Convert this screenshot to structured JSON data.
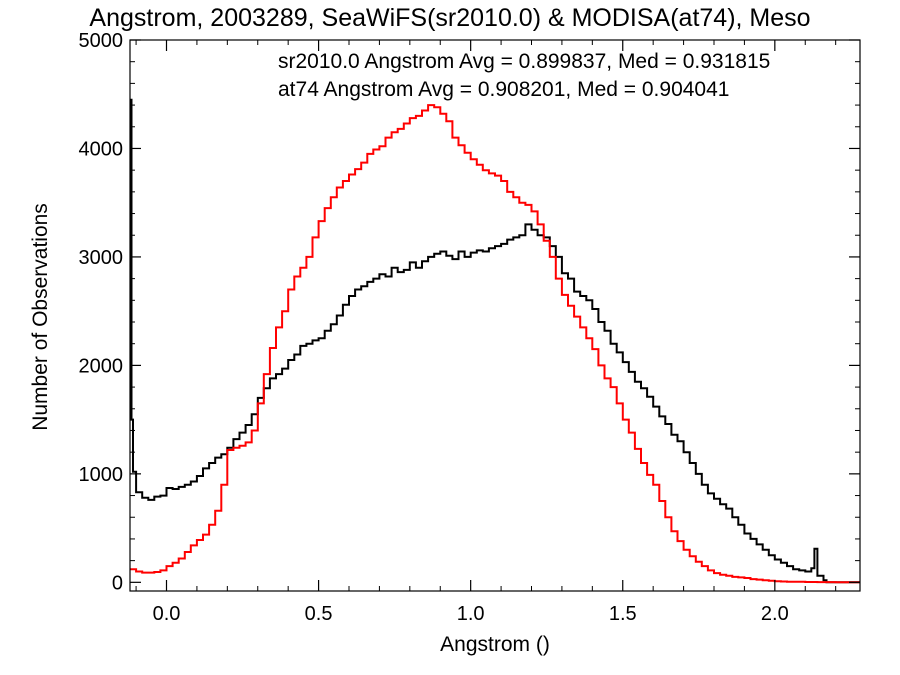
{
  "title": "Angstrom, 2003289, SeaWiFS(sr2010.0) & MODISA(at74), Meso",
  "chart_data": {
    "type": "line",
    "title": "Angstrom, 2003289, SeaWiFS(sr2010.0) & MODISA(at74), Meso",
    "xlabel": "Angstrom ()",
    "ylabel": "Number of Observations",
    "xlim": [
      -0.12,
      2.28
    ],
    "ylim": [
      -80,
      5000
    ],
    "xticks": [
      0.0,
      0.5,
      1.0,
      1.5,
      2.0
    ],
    "xtick_labels": [
      "0.0",
      "0.5",
      "1.0",
      "1.5",
      "2.0"
    ],
    "yticks": [
      0,
      1000,
      2000,
      3000,
      4000,
      5000
    ],
    "ytick_labels": [
      "0",
      "1000",
      "2000",
      "3000",
      "4000",
      "5000"
    ],
    "grid": false,
    "step": true,
    "legend": [
      {
        "text": "sr2010.0 Angstrom Avg = 0.899837, Med = 0.931815",
        "color": "#000000"
      },
      {
        "text": "at74 Angstrom Avg = 0.908201, Med = 0.904041",
        "color": "#ff0000"
      }
    ],
    "series": [
      {
        "color": "#000000",
        "points": [
          [
            -0.12,
            4450
          ],
          [
            -0.115,
            1500
          ],
          [
            -0.11,
            1020
          ],
          [
            -0.1,
            830
          ],
          [
            -0.08,
            780
          ],
          [
            -0.06,
            760
          ],
          [
            -0.04,
            790
          ],
          [
            -0.02,
            800
          ],
          [
            0.0,
            870
          ],
          [
            0.02,
            860
          ],
          [
            0.04,
            880
          ],
          [
            0.06,
            900
          ],
          [
            0.08,
            930
          ],
          [
            0.1,
            980
          ],
          [
            0.12,
            1050
          ],
          [
            0.14,
            1100
          ],
          [
            0.16,
            1150
          ],
          [
            0.18,
            1180
          ],
          [
            0.2,
            1240
          ],
          [
            0.22,
            1320
          ],
          [
            0.24,
            1380
          ],
          [
            0.26,
            1450
          ],
          [
            0.28,
            1550
          ],
          [
            0.3,
            1700
          ],
          [
            0.32,
            1790
          ],
          [
            0.34,
            1880
          ],
          [
            0.36,
            1920
          ],
          [
            0.38,
            1970
          ],
          [
            0.4,
            2050
          ],
          [
            0.42,
            2100
          ],
          [
            0.44,
            2180
          ],
          [
            0.46,
            2200
          ],
          [
            0.48,
            2230
          ],
          [
            0.5,
            2250
          ],
          [
            0.52,
            2320
          ],
          [
            0.54,
            2380
          ],
          [
            0.56,
            2460
          ],
          [
            0.58,
            2560
          ],
          [
            0.6,
            2640
          ],
          [
            0.62,
            2700
          ],
          [
            0.64,
            2730
          ],
          [
            0.66,
            2770
          ],
          [
            0.68,
            2800
          ],
          [
            0.7,
            2840
          ],
          [
            0.72,
            2820
          ],
          [
            0.74,
            2900
          ],
          [
            0.76,
            2860
          ],
          [
            0.78,
            2880
          ],
          [
            0.8,
            2950
          ],
          [
            0.82,
            2900
          ],
          [
            0.84,
            2960
          ],
          [
            0.86,
            3000
          ],
          [
            0.88,
            3030
          ],
          [
            0.9,
            3050
          ],
          [
            0.92,
            3010
          ],
          [
            0.94,
            2980
          ],
          [
            0.96,
            3050
          ],
          [
            0.98,
            3000
          ],
          [
            1.0,
            3040
          ],
          [
            1.02,
            3060
          ],
          [
            1.04,
            3050
          ],
          [
            1.06,
            3080
          ],
          [
            1.08,
            3100
          ],
          [
            1.1,
            3120
          ],
          [
            1.12,
            3160
          ],
          [
            1.14,
            3180
          ],
          [
            1.16,
            3200
          ],
          [
            1.18,
            3300
          ],
          [
            1.2,
            3250
          ],
          [
            1.22,
            3200
          ],
          [
            1.24,
            3180
          ],
          [
            1.26,
            3100
          ],
          [
            1.28,
            3000
          ],
          [
            1.3,
            2850
          ],
          [
            1.32,
            2800
          ],
          [
            1.34,
            2680
          ],
          [
            1.36,
            2640
          ],
          [
            1.38,
            2600
          ],
          [
            1.4,
            2520
          ],
          [
            1.42,
            2400
          ],
          [
            1.44,
            2320
          ],
          [
            1.46,
            2200
          ],
          [
            1.48,
            2120
          ],
          [
            1.5,
            2030
          ],
          [
            1.52,
            1940
          ],
          [
            1.54,
            1850
          ],
          [
            1.56,
            1790
          ],
          [
            1.58,
            1710
          ],
          [
            1.6,
            1620
          ],
          [
            1.62,
            1530
          ],
          [
            1.64,
            1460
          ],
          [
            1.66,
            1360
          ],
          [
            1.68,
            1300
          ],
          [
            1.7,
            1200
          ],
          [
            1.72,
            1100
          ],
          [
            1.74,
            1000
          ],
          [
            1.76,
            900
          ],
          [
            1.78,
            820
          ],
          [
            1.8,
            770
          ],
          [
            1.82,
            720
          ],
          [
            1.84,
            680
          ],
          [
            1.86,
            600
          ],
          [
            1.88,
            530
          ],
          [
            1.9,
            450
          ],
          [
            1.92,
            400
          ],
          [
            1.94,
            350
          ],
          [
            1.96,
            300
          ],
          [
            1.98,
            250
          ],
          [
            2.0,
            210
          ],
          [
            2.02,
            180
          ],
          [
            2.04,
            150
          ],
          [
            2.06,
            120
          ],
          [
            2.08,
            110
          ],
          [
            2.1,
            100
          ],
          [
            2.12,
            130
          ],
          [
            2.13,
            310
          ],
          [
            2.14,
            60
          ],
          [
            2.16,
            20
          ],
          [
            2.17,
            0
          ]
        ]
      },
      {
        "color": "#ff0000",
        "points": [
          [
            -0.12,
            120
          ],
          [
            -0.1,
            100
          ],
          [
            -0.08,
            90
          ],
          [
            -0.06,
            90
          ],
          [
            -0.04,
            95
          ],
          [
            -0.02,
            110
          ],
          [
            0.0,
            150
          ],
          [
            0.02,
            180
          ],
          [
            0.04,
            220
          ],
          [
            0.06,
            280
          ],
          [
            0.08,
            340
          ],
          [
            0.1,
            390
          ],
          [
            0.12,
            440
          ],
          [
            0.14,
            530
          ],
          [
            0.16,
            660
          ],
          [
            0.18,
            900
          ],
          [
            0.2,
            1220
          ],
          [
            0.22,
            1240
          ],
          [
            0.24,
            1260
          ],
          [
            0.26,
            1290
          ],
          [
            0.28,
            1400
          ],
          [
            0.3,
            1650
          ],
          [
            0.32,
            1920
          ],
          [
            0.34,
            2160
          ],
          [
            0.36,
            2350
          ],
          [
            0.38,
            2500
          ],
          [
            0.4,
            2700
          ],
          [
            0.42,
            2820
          ],
          [
            0.44,
            2900
          ],
          [
            0.46,
            3000
          ],
          [
            0.48,
            3180
          ],
          [
            0.5,
            3330
          ],
          [
            0.52,
            3450
          ],
          [
            0.54,
            3550
          ],
          [
            0.56,
            3640
          ],
          [
            0.58,
            3700
          ],
          [
            0.6,
            3760
          ],
          [
            0.62,
            3810
          ],
          [
            0.64,
            3870
          ],
          [
            0.66,
            3950
          ],
          [
            0.68,
            3990
          ],
          [
            0.7,
            4020
          ],
          [
            0.72,
            4100
          ],
          [
            0.74,
            4150
          ],
          [
            0.76,
            4180
          ],
          [
            0.78,
            4230
          ],
          [
            0.8,
            4280
          ],
          [
            0.82,
            4300
          ],
          [
            0.84,
            4350
          ],
          [
            0.86,
            4400
          ],
          [
            0.88,
            4380
          ],
          [
            0.9,
            4320
          ],
          [
            0.92,
            4250
          ],
          [
            0.94,
            4100
          ],
          [
            0.96,
            4030
          ],
          [
            0.98,
            3960
          ],
          [
            1.0,
            3900
          ],
          [
            1.02,
            3850
          ],
          [
            1.04,
            3800
          ],
          [
            1.06,
            3770
          ],
          [
            1.08,
            3750
          ],
          [
            1.1,
            3700
          ],
          [
            1.12,
            3600
          ],
          [
            1.14,
            3550
          ],
          [
            1.16,
            3500
          ],
          [
            1.18,
            3480
          ],
          [
            1.2,
            3420
          ],
          [
            1.22,
            3300
          ],
          [
            1.24,
            3150
          ],
          [
            1.26,
            3000
          ],
          [
            1.28,
            2800
          ],
          [
            1.3,
            2650
          ],
          [
            1.32,
            2550
          ],
          [
            1.34,
            2450
          ],
          [
            1.36,
            2350
          ],
          [
            1.38,
            2250
          ],
          [
            1.4,
            2150
          ],
          [
            1.42,
            2000
          ],
          [
            1.44,
            1880
          ],
          [
            1.46,
            1800
          ],
          [
            1.48,
            1650
          ],
          [
            1.5,
            1500
          ],
          [
            1.52,
            1380
          ],
          [
            1.54,
            1230
          ],
          [
            1.56,
            1100
          ],
          [
            1.58,
            990
          ],
          [
            1.6,
            900
          ],
          [
            1.62,
            750
          ],
          [
            1.64,
            600
          ],
          [
            1.66,
            470
          ],
          [
            1.68,
            380
          ],
          [
            1.7,
            300
          ],
          [
            1.72,
            240
          ],
          [
            1.74,
            190
          ],
          [
            1.76,
            150
          ],
          [
            1.78,
            110
          ],
          [
            1.8,
            85
          ],
          [
            1.82,
            70
          ],
          [
            1.84,
            60
          ],
          [
            1.86,
            50
          ],
          [
            1.88,
            45
          ],
          [
            1.9,
            40
          ],
          [
            1.92,
            30
          ],
          [
            1.94,
            25
          ],
          [
            1.96,
            20
          ],
          [
            1.98,
            15
          ],
          [
            2.0,
            10
          ],
          [
            2.02,
            8
          ],
          [
            2.04,
            6
          ],
          [
            2.06,
            5
          ],
          [
            2.1,
            3
          ],
          [
            2.14,
            2
          ],
          [
            2.2,
            0
          ],
          [
            2.28,
            0
          ]
        ]
      }
    ]
  }
}
